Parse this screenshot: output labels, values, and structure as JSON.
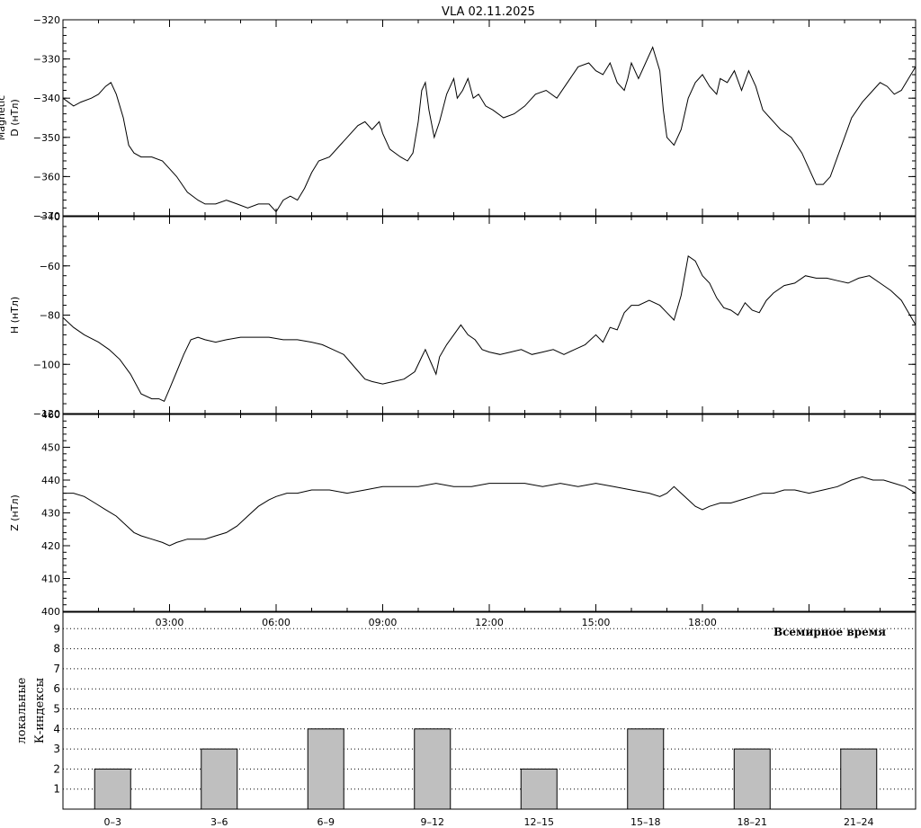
{
  "header": {
    "station": "VLA",
    "date": "02.11.2025"
  },
  "colors": {
    "line": "#000000",
    "bar_fill": "#bfbfbf",
    "background": "#ffffff",
    "dotted_grid": "#000000"
  },
  "chart_data": [
    {
      "type": "line",
      "panel": "D",
      "ylabel": "D (нТл)",
      "ylabel_prefix": "Magnetic",
      "ylim": [
        -370,
        -320
      ],
      "yticks": [
        -370,
        -360,
        -350,
        -340,
        -330,
        -320
      ],
      "xlim": [
        0,
        24
      ],
      "series": [
        {
          "x": [
            0,
            0.3,
            0.5,
            0.8,
            1.0,
            1.2,
            1.35,
            1.5,
            1.7,
            1.85,
            2.0,
            2.2,
            2.5,
            2.8,
            3.0,
            3.2,
            3.5,
            3.8,
            4.0,
            4.3,
            4.6,
            4.9,
            5.2,
            5.5,
            5.8,
            6.0,
            6.2,
            6.4,
            6.6,
            6.8,
            7.0,
            7.2,
            7.5,
            7.8,
            8.0,
            8.3,
            8.5,
            8.7,
            8.9,
            9.0,
            9.2,
            9.5,
            9.7,
            9.85,
            10.0,
            10.1,
            10.2,
            10.3,
            10.45,
            10.6,
            10.8,
            11.0,
            11.1,
            11.25,
            11.4,
            11.55,
            11.7,
            11.9,
            12.1,
            12.4,
            12.7,
            13.0,
            13.3,
            13.6,
            13.9,
            14.2,
            14.5,
            14.8,
            15.0,
            15.2,
            15.4,
            15.6,
            15.8,
            15.9,
            16.0,
            16.2,
            16.4,
            16.6,
            16.8,
            16.9,
            17.0,
            17.2,
            17.4,
            17.6,
            17.8,
            18.0,
            18.2,
            18.4,
            18.5,
            18.7,
            18.9,
            19.1,
            19.3,
            19.5,
            19.7,
            19.9,
            20.0,
            20.2,
            20.5,
            20.8,
            21.0,
            21.2,
            21.4,
            21.6,
            21.8,
            22.0,
            22.2,
            22.5,
            22.8,
            23.0,
            23.2,
            23.4,
            23.6,
            23.8,
            24.0
          ],
          "values": [
            -340,
            -342,
            -341,
            -340,
            -339,
            -337,
            -336,
            -339,
            -345,
            -352,
            -354,
            -355,
            -355,
            -356,
            -358,
            -360,
            -364,
            -366,
            -367,
            -367,
            -366,
            -367,
            -368,
            -367,
            -367,
            -369,
            -366,
            -365,
            -366,
            -363,
            -359,
            -356,
            -355,
            -352,
            -350,
            -347,
            -346,
            -348,
            -346,
            -349,
            -353,
            -355,
            -356,
            -354,
            -346,
            -338,
            -336,
            -343,
            -350,
            -346,
            -339,
            -335,
            -340,
            -338,
            -335,
            -340,
            -339,
            -342,
            -343,
            -345,
            -344,
            -342,
            -339,
            -338,
            -340,
            -336,
            -332,
            -331,
            -333,
            -334,
            -331,
            -336,
            -338,
            -335,
            -331,
            -335,
            -331,
            -327,
            -333,
            -343,
            -350,
            -352,
            -348,
            -340,
            -336,
            -334,
            -337,
            -339,
            -335,
            -336,
            -333,
            -338,
            -333,
            -337,
            -343,
            -345,
            -346,
            -348,
            -350,
            -354,
            -358,
            -362,
            -362,
            -360,
            -355,
            -350,
            -345,
            -341,
            -338,
            -336,
            -337,
            -339,
            -338,
            -335,
            -332
          ]
        }
      ]
    },
    {
      "type": "line",
      "panel": "H",
      "ylabel": "H (нТл)",
      "ylim": [
        -120,
        -40
      ],
      "yticks": [
        -120,
        -100,
        -80,
        -60,
        -40
      ],
      "xlim": [
        0,
        24
      ],
      "series": [
        {
          "x": [
            0,
            0.3,
            0.6,
            1.0,
            1.3,
            1.6,
            1.9,
            2.2,
            2.5,
            2.7,
            2.85,
            3.0,
            3.2,
            3.4,
            3.6,
            3.8,
            4.0,
            4.3,
            4.6,
            5.0,
            5.4,
            5.8,
            6.2,
            6.6,
            7.0,
            7.3,
            7.6,
            7.9,
            8.2,
            8.5,
            8.7,
            9.0,
            9.3,
            9.6,
            9.9,
            10.1,
            10.2,
            10.35,
            10.5,
            10.6,
            10.8,
            11.0,
            11.2,
            11.4,
            11.6,
            11.8,
            12.0,
            12.3,
            12.6,
            12.9,
            13.2,
            13.5,
            13.8,
            14.1,
            14.4,
            14.7,
            15.0,
            15.2,
            15.4,
            15.6,
            15.8,
            16.0,
            16.2,
            16.5,
            16.8,
            17.0,
            17.2,
            17.4,
            17.6,
            17.8,
            18.0,
            18.2,
            18.4,
            18.6,
            18.8,
            19.0,
            19.2,
            19.4,
            19.6,
            19.8,
            20.0,
            20.3,
            20.6,
            20.9,
            21.2,
            21.5,
            21.8,
            22.1,
            22.4,
            22.7,
            23.0,
            23.3,
            23.6,
            23.8,
            24.0
          ],
          "values": [
            -81,
            -85,
            -88,
            -91,
            -94,
            -98,
            -104,
            -112,
            -114,
            -114,
            -115,
            -110,
            -103,
            -96,
            -90,
            -89,
            -90,
            -91,
            -90,
            -89,
            -89,
            -89,
            -90,
            -90,
            -91,
            -92,
            -94,
            -96,
            -101,
            -106,
            -107,
            -108,
            -107,
            -106,
            -103,
            -97,
            -94,
            -99,
            -104,
            -97,
            -92,
            -88,
            -84,
            -88,
            -90,
            -94,
            -95,
            -96,
            -95,
            -94,
            -96,
            -95,
            -94,
            -96,
            -94,
            -92,
            -88,
            -91,
            -85,
            -86,
            -79,
            -76,
            -76,
            -74,
            -76,
            -79,
            -82,
            -72,
            -56,
            -58,
            -64,
            -67,
            -73,
            -77,
            -78,
            -80,
            -75,
            -78,
            -79,
            -74,
            -71,
            -68,
            -67,
            -64,
            -65,
            -65,
            -66,
            -67,
            -65,
            -64,
            -67,
            -70,
            -74,
            -79,
            -84
          ]
        }
      ]
    },
    {
      "type": "line",
      "panel": "Z",
      "ylabel": "Z (нТл)",
      "ylim": [
        400,
        460
      ],
      "yticks": [
        400,
        410,
        420,
        430,
        440,
        450,
        460
      ],
      "xlim": [
        0,
        24
      ],
      "series": [
        {
          "x": [
            0,
            0.3,
            0.6,
            0.9,
            1.2,
            1.5,
            1.8,
            2.0,
            2.2,
            2.5,
            2.8,
            3.0,
            3.2,
            3.5,
            3.8,
            4.0,
            4.3,
            4.6,
            4.9,
            5.2,
            5.5,
            5.8,
            6.0,
            6.3,
            6.6,
            7.0,
            7.5,
            8.0,
            8.5,
            9.0,
            9.5,
            10.0,
            10.5,
            11.0,
            11.5,
            12.0,
            12.5,
            13.0,
            13.5,
            14.0,
            14.5,
            15.0,
            15.5,
            16.0,
            16.5,
            16.8,
            17.0,
            17.2,
            17.4,
            17.6,
            17.8,
            18.0,
            18.2,
            18.5,
            18.8,
            19.1,
            19.4,
            19.7,
            20.0,
            20.3,
            20.6,
            21.0,
            21.4,
            21.8,
            22.2,
            22.5,
            22.8,
            23.1,
            23.4,
            23.7,
            24.0
          ],
          "values": [
            436,
            436,
            435,
            433,
            431,
            429,
            426,
            424,
            423,
            422,
            421,
            420,
            421,
            422,
            422,
            422,
            423,
            424,
            426,
            429,
            432,
            434,
            435,
            436,
            436,
            437,
            437,
            436,
            437,
            438,
            438,
            438,
            439,
            438,
            438,
            439,
            439,
            439,
            438,
            439,
            438,
            439,
            438,
            437,
            436,
            435,
            436,
            438,
            436,
            434,
            432,
            431,
            432,
            433,
            433,
            434,
            435,
            436,
            436,
            437,
            437,
            436,
            437,
            438,
            440,
            441,
            440,
            440,
            439,
            438,
            436
          ]
        }
      ]
    },
    {
      "type": "bar",
      "panel": "K",
      "ylabel": "К-индексы",
      "ylabel2": "локальные",
      "categories": [
        "0–3",
        "3–6",
        "6–9",
        "9–12",
        "12–15",
        "15–18",
        "18–21",
        "21–24"
      ],
      "values": [
        2,
        3,
        4,
        4,
        2,
        4,
        3,
        3
      ],
      "ylim": [
        0,
        10
      ],
      "yticks": [
        1,
        2,
        3,
        4,
        5,
        6,
        7,
        8,
        9
      ]
    }
  ],
  "xaxis": {
    "time_ticks": [
      "03:00",
      "06:00",
      "09:00",
      "12:00",
      "15:00",
      "18:00"
    ],
    "time_tick_values": [
      3,
      6,
      9,
      12,
      15,
      18
    ],
    "label": "Всемирное время"
  }
}
